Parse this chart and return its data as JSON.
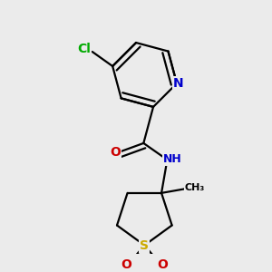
{
  "bg_color": "#ebebeb",
  "atom_colors": {
    "C": "#000000",
    "N": "#0000cc",
    "O": "#cc0000",
    "S": "#ccaa00",
    "Cl": "#00aa00",
    "H": "#555555"
  },
  "bond_color": "#000000",
  "font_size_atoms": 10,
  "font_size_small": 9,
  "lw": 1.6
}
